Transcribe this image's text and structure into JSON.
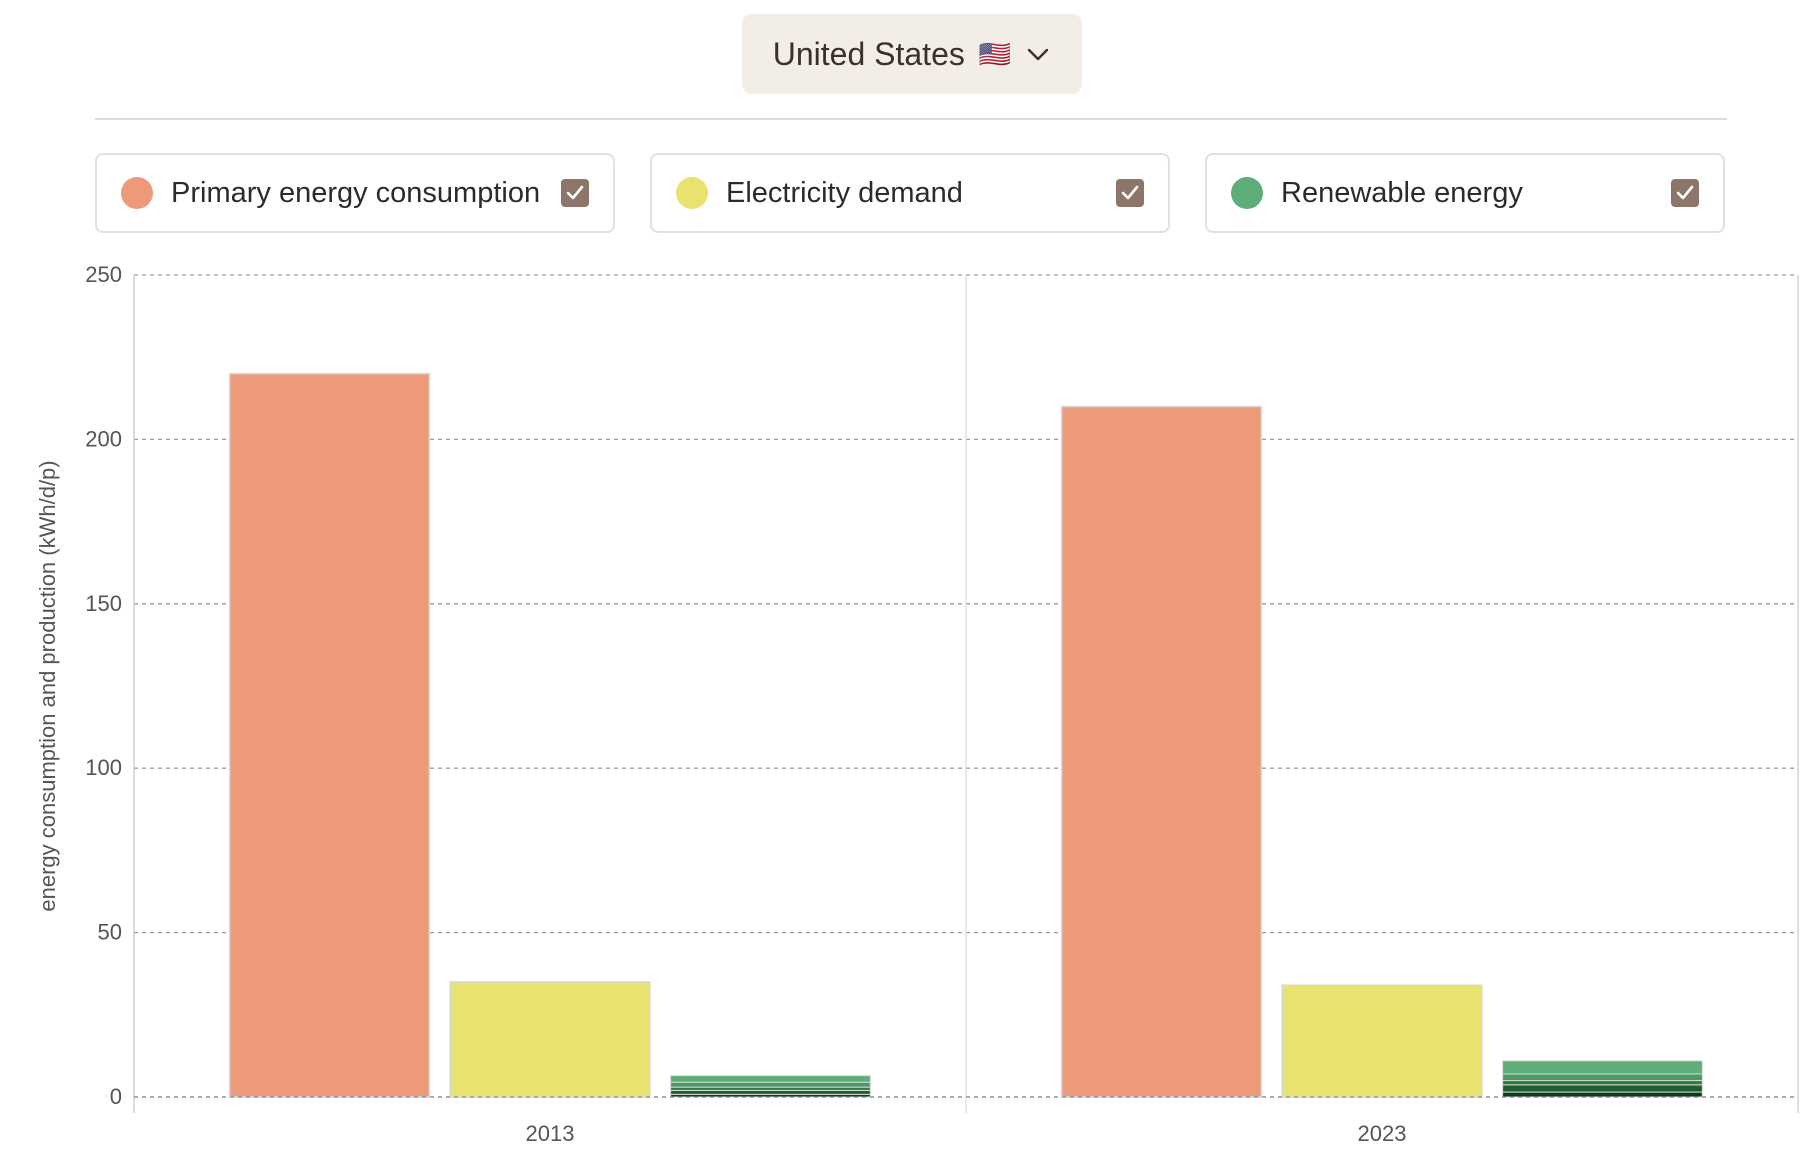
{
  "country_selector": {
    "label": "United States",
    "flag": "🇺🇸"
  },
  "toggles": [
    {
      "label": "Primary energy consumption",
      "color": "#ec9a7a",
      "checked": true
    },
    {
      "label": "Electricity demand",
      "color": "#e8e26e",
      "checked": true
    },
    {
      "label": "Renewable energy",
      "color": "#5fae79",
      "checked": true
    }
  ],
  "chart_data": {
    "type": "bar",
    "ylabel": "energy consumption and production (kWh/d/p)",
    "ylim": [
      0,
      250
    ],
    "yticks": [
      "0",
      "50",
      "100",
      "150",
      "200",
      "250"
    ],
    "categories": [
      "2013",
      "2023"
    ],
    "grid": true,
    "series": [
      {
        "name": "Primary energy consumption",
        "color": "#ec9a7a",
        "values": [
          220,
          210
        ]
      },
      {
        "name": "Electricity demand",
        "color": "#e8e26e",
        "values": [
          35,
          34
        ]
      },
      {
        "name": "Renewable energy",
        "color": "#5fae79",
        "values": [
          6.5,
          11
        ],
        "stack_colors": [
          "#0f3b1c",
          "#1f5e2e",
          "#2f7a42",
          "#4b9a63",
          "#5fae79"
        ],
        "stacks": [
          [
            0.8,
            1.2,
            1.0,
            1.5,
            2.0
          ],
          [
            1.5,
            2.2,
            1.3,
            2.0,
            4.0
          ]
        ]
      }
    ]
  }
}
